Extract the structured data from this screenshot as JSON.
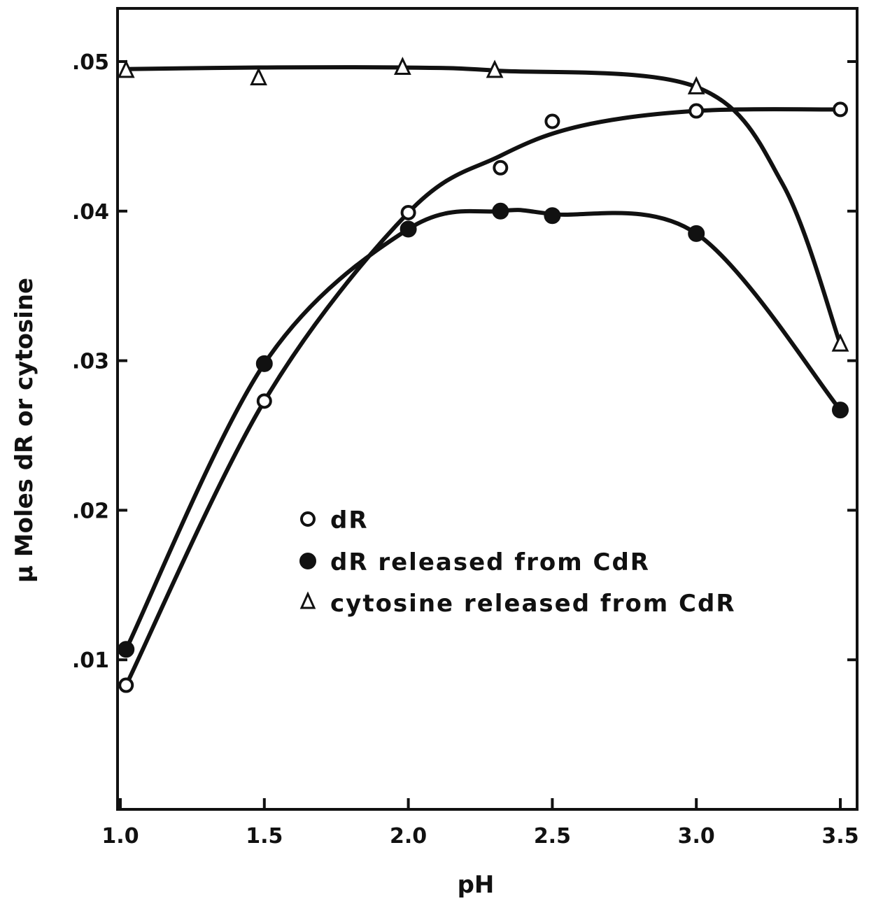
{
  "chart_data": {
    "type": "scatter",
    "title": "",
    "xlabel": "pH",
    "ylabel": "μ Moles dR or cytosine",
    "xlim": [
      1.0,
      3.5
    ],
    "ylim": [
      0.0,
      0.053
    ],
    "xticks": [
      1.0,
      1.5,
      2.0,
      2.5,
      3.0,
      3.5
    ],
    "xtick_labels": [
      "1.0",
      "1.5",
      "2.0",
      "2.5",
      "3.0",
      "3.5"
    ],
    "yticks": [
      0.01,
      0.02,
      0.03,
      0.04,
      0.05
    ],
    "ytick_labels": [
      ".01",
      ".02",
      ".03",
      ".04",
      ".05"
    ],
    "grid": false,
    "legend_position": "center-left",
    "series": [
      {
        "name": "dR",
        "marker": "open-circle",
        "x": [
          1.02,
          1.5,
          2.0,
          2.32,
          2.5,
          3.0,
          3.5
        ],
        "y": [
          0.0083,
          0.0273,
          0.0399,
          0.0429,
          0.046,
          0.0467,
          0.0468
        ],
        "curve": [
          [
            1.02,
            0.0083
          ],
          [
            1.5,
            0.0273
          ],
          [
            2.0,
            0.0399
          ],
          [
            2.32,
            0.0437
          ],
          [
            2.6,
            0.0457
          ],
          [
            3.0,
            0.0467
          ],
          [
            3.5,
            0.0468
          ]
        ]
      },
      {
        "name": "dR released from CdR",
        "marker": "filled-circle",
        "x": [
          1.02,
          1.5,
          2.0,
          2.32,
          2.5,
          3.0,
          3.5
        ],
        "y": [
          0.0107,
          0.0298,
          0.0388,
          0.04,
          0.0397,
          0.0385,
          0.0267
        ],
        "curve": [
          [
            1.02,
            0.0107
          ],
          [
            1.5,
            0.0298
          ],
          [
            2.0,
            0.0388
          ],
          [
            2.32,
            0.04
          ],
          [
            2.5,
            0.0398
          ],
          [
            3.0,
            0.0385
          ],
          [
            3.5,
            0.0267
          ]
        ]
      },
      {
        "name": "cytosine released from CdR",
        "marker": "open-triangle",
        "x": [
          1.02,
          1.48,
          1.98,
          2.3,
          3.0,
          3.5
        ],
        "y": [
          0.0494,
          0.0489,
          0.0496,
          0.0494,
          0.0483,
          0.0311
        ],
        "curve": [
          [
            1.02,
            0.0495
          ],
          [
            1.48,
            0.0496
          ],
          [
            1.98,
            0.0496
          ],
          [
            2.3,
            0.0494
          ],
          [
            3.0,
            0.0483
          ],
          [
            3.3,
            0.0418
          ],
          [
            3.5,
            0.0311
          ]
        ]
      }
    ],
    "colors": {
      "ink": "#111111",
      "background": "#ffffff"
    }
  }
}
